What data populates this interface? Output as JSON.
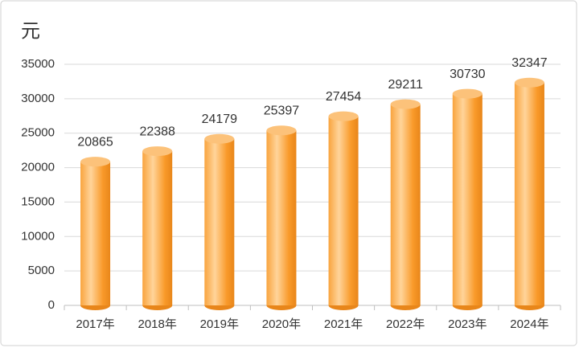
{
  "chart_data": {
    "type": "bar",
    "y_unit": "元",
    "categories": [
      "2017年",
      "2018年",
      "2019年",
      "2020年",
      "2021年",
      "2022年",
      "2023年",
      "2024年"
    ],
    "values": [
      20865,
      22388,
      24179,
      25397,
      27454,
      29211,
      30730,
      32347
    ],
    "color": "#f99a2a",
    "ylim": [
      0,
      35000
    ],
    "yticks": [
      0,
      5000,
      10000,
      15000,
      20000,
      25000,
      30000,
      35000
    ],
    "grid": true
  }
}
